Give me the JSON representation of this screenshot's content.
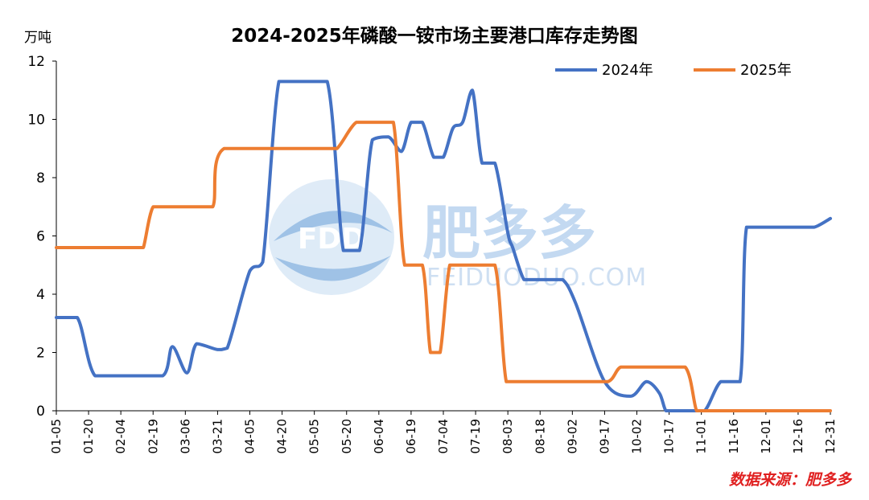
{
  "chart_data": {
    "type": "line",
    "title": "2024-2025年磷酸一铵市场主要港口库存走势图",
    "ylabel": "万吨",
    "ylim": [
      0,
      12
    ],
    "yticks": [
      "0",
      "2",
      "4",
      "6",
      "8",
      "10",
      "12"
    ],
    "categories": [
      "01-05",
      "01-20",
      "02-04",
      "02-19",
      "03-06",
      "03-21",
      "04-05",
      "04-20",
      "05-05",
      "05-20",
      "06-04",
      "06-19",
      "07-04",
      "07-19",
      "08-03",
      "08-18",
      "09-02",
      "09-17",
      "10-02",
      "10-17",
      "11-01",
      "11-16",
      "12-01",
      "12-16",
      "12-31"
    ],
    "legend_position": "top-right",
    "grid": false,
    "series": [
      {
        "name": "2024年",
        "color": "#4472c4",
        "x": [
          0,
          0.65,
          1.2,
          2.2,
          3.3,
          3.6,
          4.05,
          4.35,
          5.0,
          5.3,
          6.0,
          6.4,
          6.9,
          7.5,
          8.4,
          8.9,
          9.4,
          9.8,
          10.3,
          10.7,
          11.0,
          11.35,
          11.7,
          12.0,
          12.3,
          12.6,
          12.9,
          13.2,
          13.6,
          14.0,
          14.15,
          14.5,
          14.8,
          15.3,
          15.7,
          16.1,
          17.0,
          17.8,
          18.3,
          18.7,
          18.9,
          19.15,
          19.4,
          19.6,
          20.1,
          20.6,
          21.2,
          21.4,
          22.0,
          22.6,
          23.0,
          23.5,
          24.0
        ],
        "y": [
          3.2,
          3.2,
          1.2,
          1.2,
          1.2,
          2.2,
          1.3,
          2.3,
          2.1,
          2.15,
          4.8,
          5.1,
          11.3,
          11.3,
          11.3,
          5.5,
          5.5,
          9.3,
          9.4,
          8.9,
          9.9,
          9.9,
          8.7,
          8.7,
          9.7,
          9.9,
          11.0,
          8.5,
          8.5,
          6.1,
          5.6,
          4.5,
          4.5,
          4.5,
          4.5,
          3.7,
          1.0,
          0.5,
          1.0,
          0.6,
          0.0,
          0.0,
          0.0,
          0.0,
          0.0,
          1.0,
          1.0,
          6.3,
          6.3,
          6.3,
          6.3,
          6.3,
          6.6
        ]
      },
      {
        "name": "2025年",
        "color": "#ed7d31",
        "x": [
          0,
          1.0,
          1.8,
          2.55,
          2.7,
          3.0,
          3.5,
          4.2,
          4.85,
          5.2,
          7.7,
          8.3,
          8.7,
          9.3,
          9.9,
          10.45,
          10.8,
          11.35,
          11.6,
          11.9,
          12.2,
          12.6,
          12.9,
          13.6,
          13.95,
          14.4,
          14.7,
          15.4,
          16.2,
          17.1,
          17.5,
          18.1,
          18.6,
          19.5,
          19.85,
          20.1,
          21.0,
          22.0,
          23.0,
          24.0
        ],
        "y": [
          5.6,
          5.6,
          5.6,
          5.6,
          5.6,
          7.0,
          7.0,
          7.0,
          7.0,
          9.0,
          9.0,
          9.0,
          9.0,
          9.9,
          9.9,
          9.9,
          5.0,
          5.0,
          2.0,
          2.0,
          5.0,
          5.0,
          5.0,
          5.0,
          1.0,
          1.0,
          1.0,
          1.0,
          1.0,
          1.0,
          1.5,
          1.5,
          1.5,
          1.5,
          0.0,
          0.0,
          0.0,
          0.0,
          0.0,
          0.0
        ]
      }
    ]
  },
  "watermark": {
    "logo_text": "FDD",
    "brand": "肥多多",
    "site": "FEIDUODUO.COM"
  },
  "source_note": "数据来源：肥多多"
}
